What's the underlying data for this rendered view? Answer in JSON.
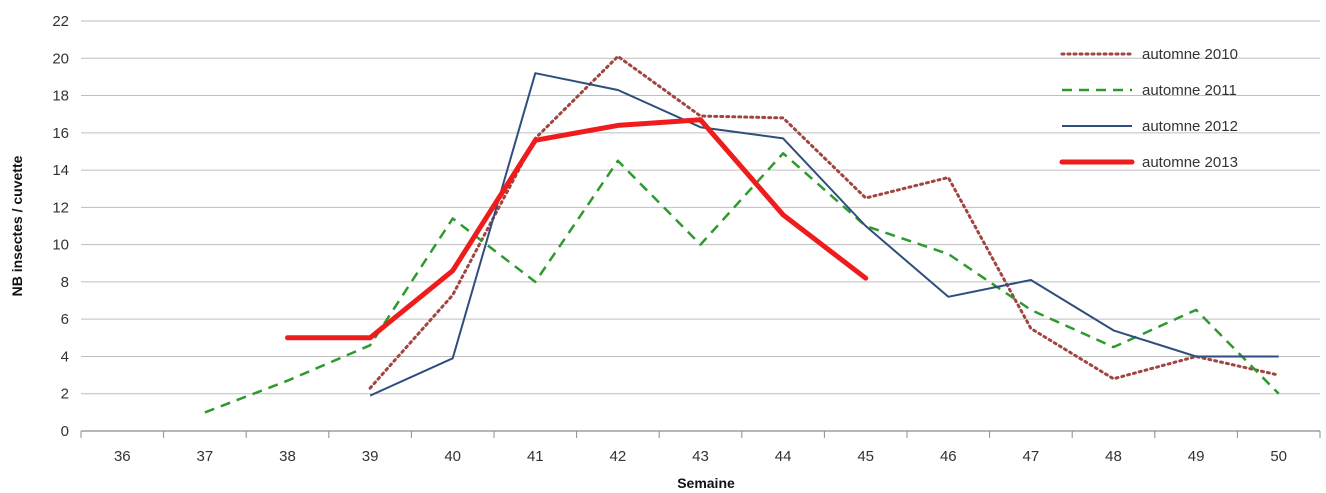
{
  "chart_data": {
    "type": "line",
    "title": "",
    "xlabel": "Semaine",
    "ylabel": "NB insectes / cuvette",
    "x": [
      36,
      37,
      38,
      39,
      40,
      41,
      42,
      43,
      44,
      45,
      46,
      47,
      48,
      49,
      50
    ],
    "xlim": [
      35.5,
      50.5
    ],
    "ylim": [
      0,
      22
    ],
    "yticks": [
      0,
      2,
      4,
      6,
      8,
      10,
      12,
      14,
      16,
      18,
      20,
      22
    ],
    "grid": "horizontal",
    "legend_position": "top-right",
    "series": [
      {
        "name": "automne 2010",
        "color": "#A0453F",
        "style": "dotted",
        "values": [
          null,
          null,
          null,
          2.3,
          7.3,
          15.7,
          20.1,
          16.9,
          16.8,
          12.5,
          13.6,
          5.5,
          2.8,
          4.0,
          3.0
        ]
      },
      {
        "name": "automne 2011",
        "color": "#2E9A2E",
        "style": "dashed",
        "values": [
          null,
          1.0,
          2.7,
          4.6,
          11.4,
          8.0,
          14.5,
          10.0,
          14.9,
          11.0,
          9.5,
          6.5,
          4.5,
          6.5,
          2.0
        ]
      },
      {
        "name": "automne 2012",
        "color": "#2F4E7E",
        "style": "solid",
        "values": [
          null,
          null,
          null,
          1.9,
          3.9,
          19.2,
          18.3,
          16.3,
          15.7,
          11.0,
          7.2,
          8.1,
          5.4,
          4.0,
          4.0
        ]
      },
      {
        "name": "automne 2013",
        "color": "#EE1C1C",
        "style": "thick",
        "values": [
          null,
          null,
          5.0,
          5.0,
          8.6,
          15.6,
          16.4,
          16.7,
          11.6,
          8.2,
          null,
          null,
          null,
          null,
          null
        ]
      }
    ]
  }
}
